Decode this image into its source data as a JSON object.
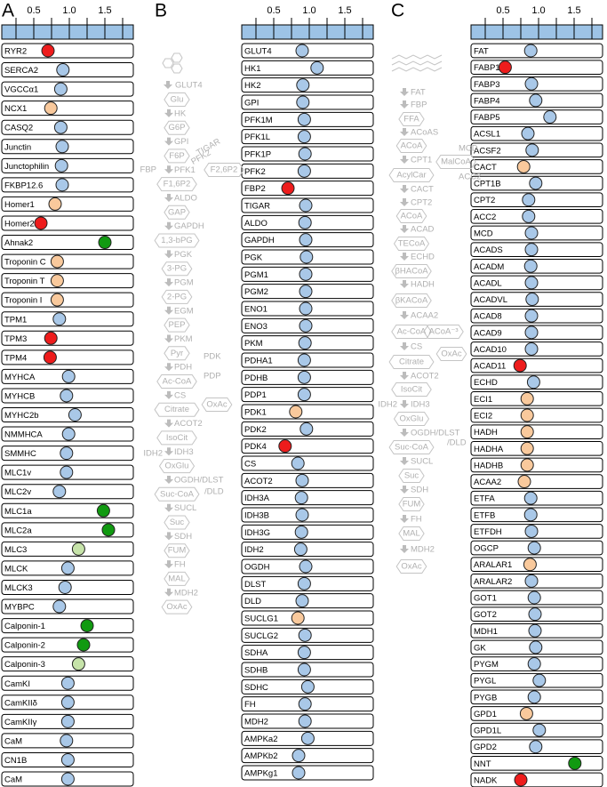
{
  "chart_data": [
    {
      "type": "dot",
      "label": "A",
      "xlim": [
        0.05,
        1.9
      ],
      "xticks": [
        0.5,
        {
          "value": 1,
          "label": "1.0"
        },
        1.5
      ],
      "minor_xticks": [
        0.25,
        0.75,
        1.25,
        1.75
      ],
      "categories": [
        "RYR2",
        "SERCA2",
        "VGCCα1",
        "NCX1",
        "CASQ2",
        "Junctin",
        "Junctophilin",
        "FKBP12.6",
        "Homer1",
        "Homer2",
        "Ahnak2",
        "Troponin C",
        "Troponin T",
        "Troponin I",
        "TPM1",
        "TPM3",
        "TPM4",
        "MYHCA",
        "MYHCB",
        "MYHC2b",
        "NMMHCA",
        "SMMHC",
        "MLC1v",
        "MLC2v",
        "MLC1a",
        "MLC2a",
        "MLC3",
        "MLCK",
        "MLCK3",
        "MYBPC",
        "Calponin-1",
        "Calponin-2",
        "Calponin-3",
        "CamKI",
        "CamKIIδ",
        "CamKIIγ",
        "CaM",
        "CN1B",
        "CaM"
      ],
      "values": [
        0.7,
        0.91,
        0.88,
        0.74,
        0.88,
        0.9,
        0.89,
        0.9,
        0.8,
        0.6,
        1.5,
        0.83,
        0.83,
        0.83,
        0.86,
        0.74,
        0.73,
        0.99,
        0.96,
        1.08,
        0.99,
        0.96,
        0.96,
        0.86,
        1.48,
        1.55,
        1.13,
        0.98,
        0.94,
        0.86,
        1.25,
        1.2,
        1.13,
        0.98,
        0.98,
        0.98,
        0.96,
        0.98,
        0.98
      ],
      "colors": [
        "#ee1c1c",
        "#a9c8e8",
        "#a9c8e8",
        "#f9c99c",
        "#a9c8e8",
        "#a9c8e8",
        "#a9c8e8",
        "#a9c8e8",
        "#f9c99c",
        "#ee1c1c",
        "#119a11",
        "#f9c99c",
        "#f9c99c",
        "#f9c99c",
        "#a9c8e8",
        "#ee1c1c",
        "#ee1c1c",
        "#a9c8e8",
        "#a9c8e8",
        "#a9c8e8",
        "#a9c8e8",
        "#a9c8e8",
        "#a9c8e8",
        "#a9c8e8",
        "#119a11",
        "#119a11",
        "#c6e3a9",
        "#a9c8e8",
        "#a9c8e8",
        "#a9c8e8",
        "#119a11",
        "#119a11",
        "#c6e3a9",
        "#a9c8e8",
        "#a9c8e8",
        "#a9c8e8",
        "#a9c8e8",
        "#a9c8e8",
        "#a9c8e8"
      ]
    },
    {
      "type": "dot",
      "label": "B",
      "xlim": [
        0.05,
        1.9
      ],
      "xticks": [
        0.5,
        {
          "value": 1,
          "label": "1.0"
        },
        1.5
      ],
      "minor_xticks": [
        0.25,
        0.75,
        1.25,
        1.75
      ],
      "categories": [
        "GLUT4",
        "HK1",
        "HK2",
        "GPI",
        "PFK1M",
        "PFK1L",
        "PFK1P",
        "PFK2",
        "FBP2",
        "TIGAR",
        "ALDO",
        "GAPDH",
        "PGK",
        "PGM1",
        "PGM2",
        "ENO1",
        "ENO3",
        "PKM",
        "PDHA1",
        "PDHB",
        "PDP1",
        "PDK1",
        "PDK2",
        "PDK4",
        "CS",
        "ACOT2",
        "IDH3A",
        "IDH3B",
        "IDH3G",
        "IDH2",
        "OGDH",
        "DLST",
        "DLD",
        "SUCLG1",
        "SUCLG2",
        "SDHA",
        "SDHB",
        "SDHC",
        "FH",
        "MDH2",
        "AMPKa2",
        "AMPKb2",
        "AMPKg1"
      ],
      "values": [
        0.9,
        1.11,
        0.91,
        0.91,
        0.93,
        0.93,
        0.94,
        0.93,
        0.7,
        0.95,
        0.94,
        0.95,
        0.96,
        0.95,
        0.95,
        0.95,
        0.95,
        0.94,
        0.93,
        0.93,
        0.93,
        0.81,
        0.96,
        0.66,
        0.84,
        0.9,
        0.89,
        0.9,
        0.89,
        0.88,
        0.95,
        0.93,
        0.9,
        0.84,
        0.94,
        0.93,
        0.93,
        0.98,
        0.94,
        0.94,
        0.98,
        0.85,
        0.85
      ],
      "colors": [
        "#a9c8e8",
        "#a9c8e8",
        "#a9c8e8",
        "#a9c8e8",
        "#a9c8e8",
        "#a9c8e8",
        "#a9c8e8",
        "#a9c8e8",
        "#ee1c1c",
        "#a9c8e8",
        "#a9c8e8",
        "#a9c8e8",
        "#a9c8e8",
        "#a9c8e8",
        "#a9c8e8",
        "#a9c8e8",
        "#a9c8e8",
        "#a9c8e8",
        "#a9c8e8",
        "#a9c8e8",
        "#a9c8e8",
        "#f9c99c",
        "#a9c8e8",
        "#ee1c1c",
        "#a9c8e8",
        "#a9c8e8",
        "#a9c8e8",
        "#a9c8e8",
        "#a9c8e8",
        "#a9c8e8",
        "#a9c8e8",
        "#a9c8e8",
        "#a9c8e8",
        "#f9c99c",
        "#a9c8e8",
        "#a9c8e8",
        "#a9c8e8",
        "#a9c8e8",
        "#a9c8e8",
        "#a9c8e8",
        "#a9c8e8",
        "#a9c8e8",
        "#a9c8e8"
      ],
      "pathway": {
        "nodes": [
          "Glu",
          "G6P",
          "F6P",
          "F1,6P2",
          "GAP",
          "1,3-bPG",
          "3-PG",
          "2-PG",
          "PEP",
          "Pyr",
          "Ac-CoA",
          "Citrate",
          "IsoCit",
          "OxGlu",
          "Suc-CoA",
          "Suc",
          "FUM",
          "MAL",
          "OxAc"
        ],
        "enzymes": [
          "HK",
          "GPI",
          "PFK1",
          "ALDO",
          "GAPDH",
          "PGK",
          "PGM",
          "EGM",
          "PKM",
          "PDH",
          "CS",
          "ACOT2",
          "IDH3",
          "OGDH/DLST",
          "SUCL",
          "SDH",
          "FH",
          "MDH2"
        ],
        "extras": [
          "GLUT4",
          "TIGAR",
          "PFK2",
          "FBP",
          "F2,6P2",
          "PDK",
          "PDP",
          "OxAc",
          "IDH2",
          "/DLD"
        ]
      }
    },
    {
      "type": "dot",
      "label": "C",
      "xlim": [
        0.05,
        1.9
      ],
      "xticks": [
        0.5,
        {
          "value": 1,
          "label": "1.0"
        },
        1.5
      ],
      "minor_xticks": [
        0.25,
        0.75,
        1.25,
        1.75
      ],
      "categories": [
        "FAT",
        "FABP1",
        "FABP3",
        "FABP4",
        "FABP5",
        "ACSL1",
        "ACSF2",
        "CACT",
        "CPT1B",
        "CPT2",
        "ACC2",
        "MCD",
        "ACADS",
        "ACADM",
        "ACADL",
        "ACADVL",
        "ACAD8",
        "ACAD9",
        "ACAD10",
        "ACAD11",
        "ECHD",
        "ECI1",
        "ECI2",
        "HADH",
        "HADHA",
        "HADHB",
        "ACAA2",
        "ETFA",
        "ETFB",
        "ETFDH",
        "OGCP",
        "ARALAR1",
        "ARALAR2",
        "GOT1",
        "GOT2",
        "MDH1",
        "GK",
        "PYGM",
        "PYGL",
        "PYGB",
        "GPD1",
        "GPD1L",
        "GPD2",
        "NNT",
        "NADK"
      ],
      "values": [
        0.89,
        0.53,
        0.9,
        0.96,
        1.16,
        0.85,
        0.91,
        0.79,
        0.96,
        0.86,
        0.86,
        0.9,
        0.9,
        0.89,
        0.9,
        0.91,
        0.9,
        0.9,
        0.9,
        0.74,
        0.93,
        0.84,
        0.84,
        0.84,
        0.84,
        0.84,
        0.8,
        0.89,
        0.89,
        0.9,
        0.94,
        0.88,
        0.9,
        0.94,
        0.95,
        0.95,
        0.96,
        0.94,
        1.01,
        0.94,
        0.83,
        1.01,
        0.96,
        1.51,
        0.75
      ],
      "colors": [
        "#a9c8e8",
        "#ee1c1c",
        "#a9c8e8",
        "#a9c8e8",
        "#a9c8e8",
        "#a9c8e8",
        "#a9c8e8",
        "#f9c99c",
        "#a9c8e8",
        "#a9c8e8",
        "#a9c8e8",
        "#a9c8e8",
        "#a9c8e8",
        "#a9c8e8",
        "#a9c8e8",
        "#a9c8e8",
        "#a9c8e8",
        "#a9c8e8",
        "#a9c8e8",
        "#ee1c1c",
        "#a9c8e8",
        "#f9c99c",
        "#f9c99c",
        "#f9c99c",
        "#f9c99c",
        "#f9c99c",
        "#f9c99c",
        "#a9c8e8",
        "#a9c8e8",
        "#a9c8e8",
        "#a9c8e8",
        "#f9c99c",
        "#a9c8e8",
        "#a9c8e8",
        "#a9c8e8",
        "#a9c8e8",
        "#a9c8e8",
        "#a9c8e8",
        "#a9c8e8",
        "#a9c8e8",
        "#f9c99c",
        "#a9c8e8",
        "#a9c8e8",
        "#119a11",
        "#ee1c1c"
      ],
      "pathway": {
        "nodes": [
          "FFA",
          "ACoA",
          "AcylCar",
          "ACoA",
          "TECoA",
          "βHACoA",
          "βKACoA",
          "Ac-CoA",
          "Citrate",
          "IsoCit",
          "OxGlu",
          "Suc-CoA",
          "Suc",
          "FUM",
          "MAL",
          "OxAc"
        ],
        "enzymes": [
          "FAT",
          "FBP",
          "ACoAS",
          "CPT1",
          "CACT",
          "CPT2",
          "ACAD",
          "ECHD",
          "HADH",
          "ACAA2",
          "CS",
          "ACOT2",
          "IDH3",
          "OGDH/DLST",
          "SUCL",
          "SDH",
          "FH",
          "MDH2"
        ],
        "extras": [
          "MCD",
          "MalCoA",
          "ACC2",
          "ACoA⁻³",
          "OxAc",
          "IDH2",
          "/DLD"
        ]
      }
    }
  ]
}
